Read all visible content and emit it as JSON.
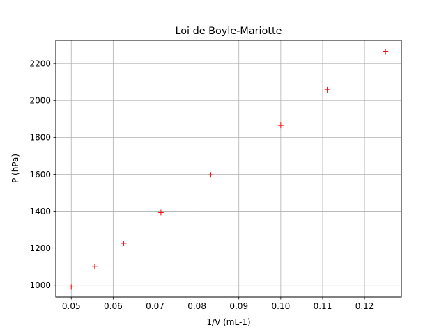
{
  "chart_data": {
    "type": "scatter",
    "title": "Loi de Boyle-Mariotte",
    "xlabel": "1/V (mL-1)",
    "ylabel": "P (hPa)",
    "xlim": [
      0.0463,
      0.1288
    ],
    "ylim": [
      935,
      2325
    ],
    "x_ticks": [
      0.05,
      0.06,
      0.07,
      0.08,
      0.09,
      0.1,
      0.11,
      0.12
    ],
    "x_tick_labels": [
      "0.05",
      "0.06",
      "0.07",
      "0.08",
      "0.09",
      "0.10",
      "0.11",
      "0.12"
    ],
    "y_ticks": [
      1000,
      1200,
      1400,
      1600,
      1800,
      2000,
      2200
    ],
    "y_tick_labels": [
      "1000",
      "1200",
      "1400",
      "1600",
      "1800",
      "2000",
      "2200"
    ],
    "grid": true,
    "marker": "+",
    "marker_color": "#ff0000",
    "series": [
      {
        "x": [
          0.05,
          0.0556,
          0.0625,
          0.0714,
          0.0833,
          0.1,
          0.1111,
          0.125
        ],
        "y": [
          990,
          1100,
          1225,
          1393,
          1597,
          1865,
          2058,
          2263
        ]
      }
    ]
  }
}
